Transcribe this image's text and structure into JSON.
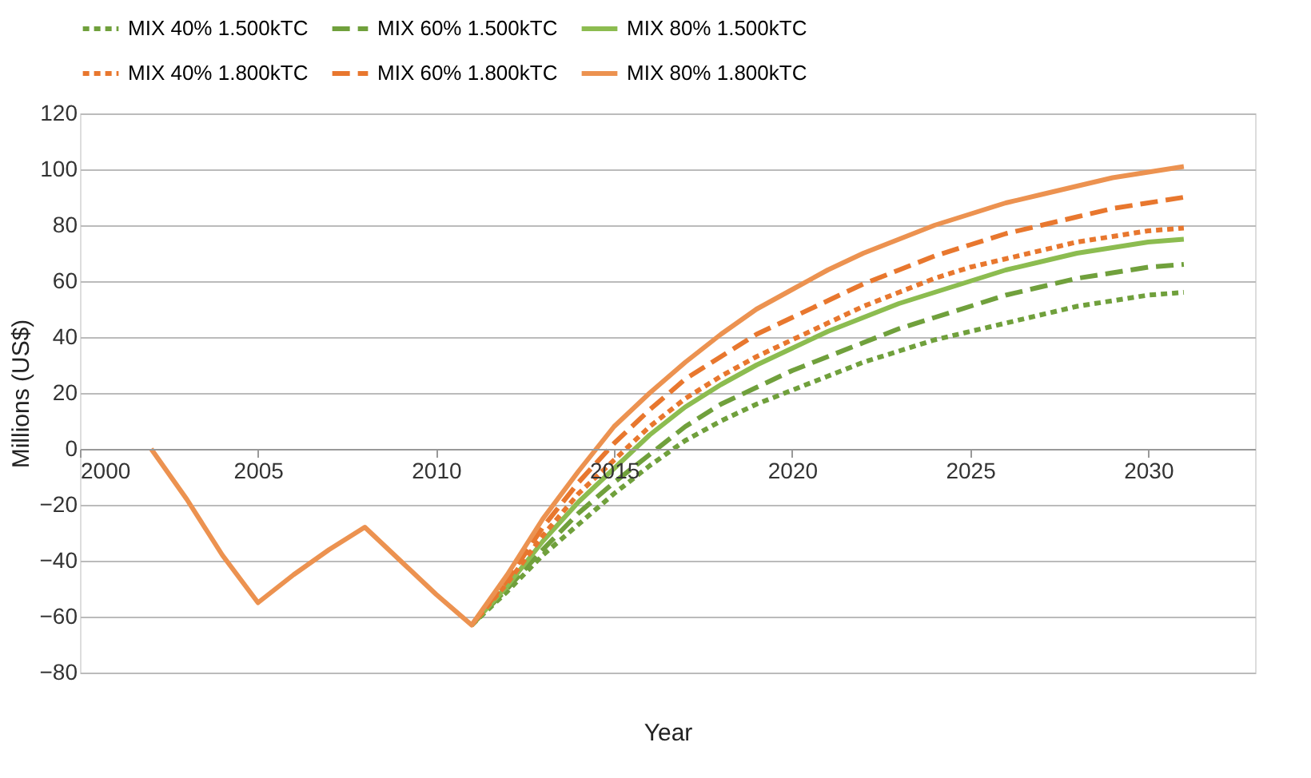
{
  "chart_data": {
    "type": "line",
    "xlabel": "Year",
    "ylabel": "Millions (US$)",
    "x": [
      2002,
      2003,
      2004,
      2005,
      2006,
      2007,
      2008,
      2009,
      2010,
      2011,
      2012,
      2013,
      2014,
      2015,
      2016,
      2017,
      2018,
      2019,
      2020,
      2021,
      2022,
      2023,
      2024,
      2025,
      2026,
      2027,
      2028,
      2029,
      2030,
      2031
    ],
    "xlim": [
      2000,
      2033
    ],
    "xticks": [
      2000,
      2005,
      2010,
      2015,
      2020,
      2025,
      2030
    ],
    "ylim": [
      -80,
      120
    ],
    "yticks": [
      -80,
      -60,
      -40,
      -20,
      0,
      20,
      40,
      60,
      80,
      100,
      120
    ],
    "grid": "y",
    "legend": "top",
    "marker": "none",
    "series": [
      {
        "name": "MIX 40% 1.500kTC",
        "color": "#70a03c",
        "line_style": "dotted",
        "values": [
          null,
          null,
          null,
          null,
          null,
          null,
          null,
          null,
          null,
          -63,
          -51,
          -38,
          -27,
          -16,
          -6,
          3,
          10,
          16,
          21,
          26,
          31,
          35,
          39,
          42,
          45,
          48,
          51,
          53,
          55,
          56
        ]
      },
      {
        "name": "MIX 60% 1.500kTC",
        "color": "#70a03c",
        "line_style": "dashed",
        "values": [
          null,
          null,
          null,
          null,
          null,
          null,
          null,
          null,
          null,
          -63,
          -50,
          -36,
          -23,
          -12,
          -2,
          8,
          16,
          22,
          28,
          33,
          38,
          43,
          47,
          51,
          55,
          58,
          61,
          63,
          65,
          66
        ]
      },
      {
        "name": "MIX 80% 1.500kTC",
        "color": "#8cbc50",
        "line_style": "solid",
        "values": [
          null,
          null,
          null,
          null,
          null,
          null,
          null,
          null,
          null,
          -63,
          -49,
          -33,
          -19,
          -7,
          5,
          15,
          23,
          30,
          36,
          42,
          47,
          52,
          56,
          60,
          64,
          67,
          70,
          72,
          74,
          75
        ]
      },
      {
        "name": "MIX 40% 1.800kTC",
        "color": "#e8772e",
        "line_style": "dotted",
        "values": [
          null,
          null,
          null,
          null,
          null,
          null,
          null,
          null,
          null,
          -63,
          -48,
          -31,
          -16,
          -4,
          8,
          18,
          26,
          33,
          39,
          45,
          51,
          56,
          61,
          65,
          68,
          71,
          74,
          76,
          78,
          79
        ]
      },
      {
        "name": "MIX 60% 1.800kTC",
        "color": "#e8772e",
        "line_style": "dashed",
        "values": [
          null,
          null,
          null,
          null,
          null,
          null,
          null,
          null,
          null,
          -63,
          -47,
          -28,
          -12,
          2,
          14,
          25,
          33,
          41,
          47,
          53,
          59,
          64,
          69,
          73,
          77,
          80,
          83,
          86,
          88,
          90
        ]
      },
      {
        "name": "MIX 80% 1.800kTC",
        "color": "#ec9250",
        "line_style": "solid",
        "values": [
          0,
          -18,
          -38,
          -55,
          -45,
          -36,
          -28,
          -40,
          -52,
          -63,
          -45,
          -25,
          -8,
          8,
          20,
          31,
          41,
          50,
          57,
          64,
          70,
          75,
          80,
          84,
          88,
          91,
          94,
          97,
          99,
          101
        ]
      }
    ]
  }
}
